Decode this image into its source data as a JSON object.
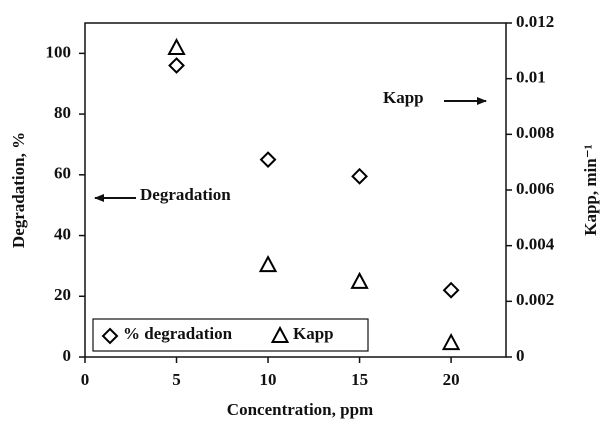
{
  "chart_data": {
    "type": "scatter",
    "xlabel": "Concentration, ppm",
    "ylabel": "Degradation, %",
    "y2label": "Kapp, min⁻¹",
    "x": [
      5,
      10,
      15,
      20
    ],
    "xlim": [
      0,
      23
    ],
    "xticks": [
      0,
      5,
      10,
      15,
      20
    ],
    "ylim": [
      0,
      110
    ],
    "yticks": [
      0,
      20,
      40,
      60,
      80,
      100
    ],
    "y2lim": [
      0,
      0.012
    ],
    "y2ticks": [
      0,
      0.002,
      0.004,
      0.006,
      0.008,
      0.01,
      0.012
    ],
    "series": [
      {
        "name": "% degradation",
        "color": "#000000",
        "marker": "diamond",
        "values": [
          96,
          65,
          59.5,
          22
        ]
      },
      {
        "name": "Kapp",
        "color": "#000000",
        "marker": "triangle",
        "axis": "y2",
        "values": [
          0.0111,
          0.0033,
          0.0027,
          0.0005
        ]
      }
    ],
    "annotations": [
      "Kapp",
      "Degradation"
    ],
    "grid": false
  }
}
